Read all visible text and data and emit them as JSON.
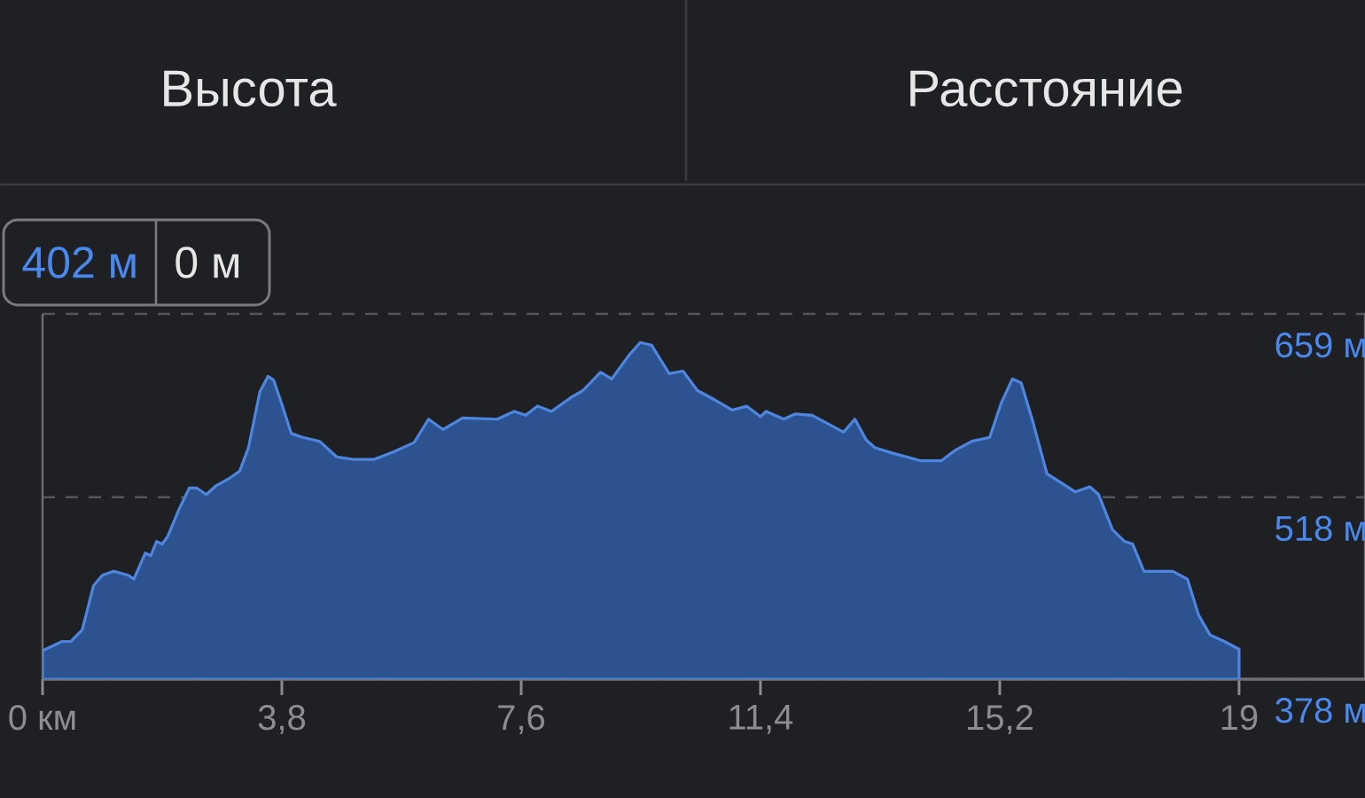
{
  "chart_data": {
    "type": "area",
    "xlabel": "Расстояние",
    "ylabel": "Высота",
    "annotations": [
      "402 м",
      "0 м"
    ],
    "x": [
      0,
      0.31,
      0.45,
      0.63,
      0.81,
      0.95,
      1.13,
      1.36,
      1.45,
      1.63,
      1.72,
      1.81,
      1.9,
      1.99,
      2.17,
      2.33,
      2.45,
      2.6,
      2.76,
      2.95,
      3.13,
      3.27,
      3.45,
      3.58,
      3.67,
      3.81,
      3.95,
      4.13,
      4.4,
      4.67,
      4.95,
      5.26,
      5.58,
      5.9,
      6.13,
      6.36,
      6.67,
      7.22,
      7.49,
      7.67,
      7.86,
      8.08,
      8.4,
      8.58,
      8.86,
      9.04,
      9.31,
      9.49,
      9.67,
      9.95,
      10.17,
      10.4,
      10.67,
      10.95,
      11.18,
      11.4,
      11.49,
      11.77,
      11.95,
      12.22,
      12.49,
      12.72,
      12.9,
      13.08,
      13.22,
      13.49,
      13.95,
      14.27,
      14.49,
      14.76,
      15.04,
      15.22,
      15.4,
      15.54,
      15.72,
      15.95,
      16.18,
      16.4,
      16.63,
      16.77,
      16.99,
      17.18,
      17.31,
      17.49,
      17.72,
      17.95,
      18.18,
      18.36,
      18.54,
      18.77,
      19
    ],
    "values": [
      400,
      407,
      407,
      416,
      450,
      458,
      461,
      458,
      455,
      475,
      473,
      484,
      482,
      488,
      509,
      525,
      525,
      520,
      527,
      532,
      538,
      556,
      599,
      611,
      608,
      588,
      567,
      564,
      561,
      549,
      547,
      547,
      553,
      560,
      578,
      570,
      579,
      578,
      584,
      581,
      588,
      584,
      595,
      600,
      614,
      609,
      627,
      637,
      635,
      613,
      615,
      600,
      593,
      585,
      588,
      580,
      584,
      578,
      582,
      581,
      574,
      568,
      578,
      562,
      556,
      552,
      546,
      546,
      554,
      561,
      564,
      590,
      609,
      606,
      577,
      536,
      529,
      522,
      526,
      520,
      493,
      484,
      482,
      461,
      461,
      461,
      455,
      427,
      412,
      407,
      401
    ],
    "color": "#2c5390",
    "xlim": [
      0,
      21
    ],
    "ylim": [
      378,
      659
    ],
    "xticks": [
      {
        "value": 0,
        "label": "0 км"
      },
      {
        "value": 3.8,
        "label": "3,8"
      },
      {
        "value": 7.6,
        "label": "7,6"
      },
      {
        "value": 11.4,
        "label": "11,4"
      },
      {
        "value": 15.2,
        "label": "15,2"
      },
      {
        "value": 19,
        "label": "19"
      }
    ],
    "yticks": [
      {
        "value": 378,
        "label": "378 м"
      },
      {
        "value": 518,
        "label": "518 м"
      },
      {
        "value": 659,
        "label": "659 м"
      }
    ],
    "grid": "y"
  }
}
